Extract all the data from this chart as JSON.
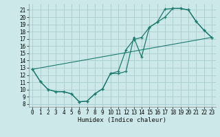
{
  "xlabel": "Humidex (Indice chaleur)",
  "bg_color": "#cce8e8",
  "grid_color": "#aacccc",
  "line_color": "#1a7a6e",
  "xlim": [
    -0.5,
    23.5
  ],
  "ylim": [
    7.6,
    21.8
  ],
  "ytick_vals": [
    8,
    9,
    10,
    11,
    12,
    13,
    14,
    15,
    16,
    17,
    18,
    19,
    20,
    21
  ],
  "xtick_vals": [
    0,
    1,
    2,
    3,
    4,
    5,
    6,
    7,
    8,
    9,
    10,
    11,
    12,
    13,
    14,
    15,
    16,
    17,
    18,
    19,
    20,
    21,
    22,
    23
  ],
  "curve1_x": [
    0,
    1,
    2,
    3,
    4,
    5,
    6,
    7,
    8,
    9,
    10,
    11,
    12,
    13,
    14,
    15,
    16,
    17,
    18,
    19,
    20,
    21,
    22,
    23
  ],
  "curve1_y": [
    12.8,
    11.1,
    10.0,
    9.7,
    9.7,
    9.4,
    8.3,
    8.4,
    9.4,
    10.1,
    12.2,
    12.2,
    12.5,
    17.2,
    14.5,
    18.6,
    19.3,
    20.0,
    21.2,
    21.2,
    21.0,
    19.4,
    18.2,
    17.2
  ],
  "curve2_x": [
    0,
    1,
    2,
    3,
    4,
    5,
    6,
    7,
    8,
    9,
    10,
    11,
    12,
    13,
    14,
    15,
    16,
    17,
    18,
    19,
    20,
    21,
    22,
    23
  ],
  "curve2_y": [
    12.8,
    11.1,
    10.0,
    9.7,
    9.7,
    9.4,
    8.3,
    8.4,
    9.4,
    10.1,
    12.2,
    12.5,
    15.5,
    16.9,
    17.2,
    18.6,
    19.3,
    21.1,
    21.2,
    21.2,
    21.0,
    19.4,
    18.2,
    17.2
  ],
  "line3_x": [
    0,
    23
  ],
  "line3_y": [
    12.8,
    17.2
  ]
}
